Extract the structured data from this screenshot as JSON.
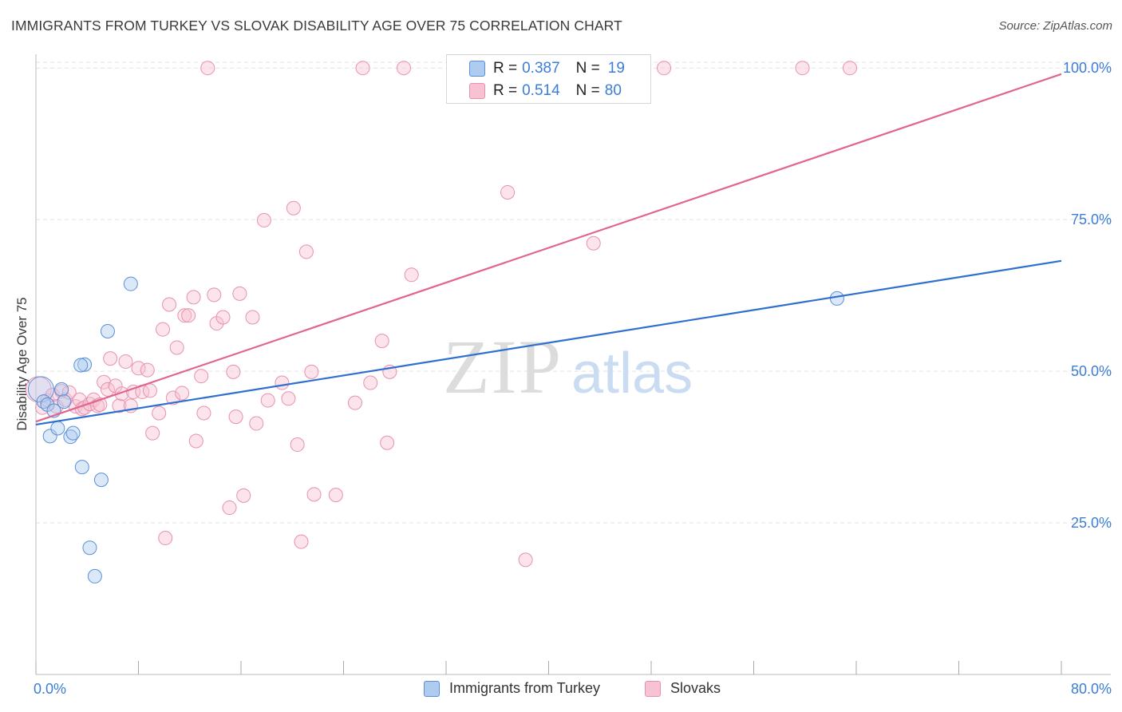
{
  "title": "IMMIGRANTS FROM TURKEY VS SLOVAK DISABILITY AGE OVER 75 CORRELATION CHART",
  "source": "Source: ZipAtlas.com",
  "watermark": {
    "zip": "ZIP",
    "atlas": "atlas"
  },
  "legend_top": [
    {
      "r_label": "R =",
      "r_value": "0.387",
      "n_label": "N =",
      "n_value": "19"
    },
    {
      "r_label": "R =",
      "r_value": "0.514",
      "n_label": "N =",
      "n_value": "80"
    }
  ],
  "x_axis": {
    "min_label": "0.0%",
    "max_label": "80.0%"
  },
  "colors": {
    "blue_fill": "#aecbf0",
    "blue_stroke": "#5b8fd6",
    "blue_line": "#2f6fd0",
    "pink_fill": "#f7c3d3",
    "pink_stroke": "#e891ad",
    "pink_line": "#e0658f",
    "tick_label": "#3b7dd8",
    "grid": "#e2e2e2"
  },
  "chart_data": {
    "type": "scatter",
    "title": "IMMIGRANTS FROM TURKEY VS SLOVAK DISABILITY AGE OVER 75 CORRELATION CHART",
    "xlabel": "",
    "ylabel": "Disability Age Over 75",
    "xlim": [
      0,
      80
    ],
    "ylim": [
      0,
      102
    ],
    "y_ticks": [
      {
        "value": 25,
        "label": "25.0%"
      },
      {
        "value": 50,
        "label": "50.0%"
      },
      {
        "value": 75,
        "label": "75.0%"
      },
      {
        "value": 100,
        "label": "100.0%"
      }
    ],
    "x_ticks": [
      0,
      8,
      16,
      24,
      32,
      40,
      48,
      56,
      64,
      72,
      80
    ],
    "grid": true,
    "legend_position": "bottom",
    "series": [
      {
        "name": "Immigrants from Turkey",
        "color": "#aecbf0",
        "points": [
          [
            0.4,
            47
          ],
          [
            0.6,
            45
          ],
          [
            0.9,
            44.5
          ],
          [
            1.1,
            39.3
          ],
          [
            1.4,
            43.5
          ],
          [
            1.7,
            40.6
          ],
          [
            2.0,
            47
          ],
          [
            2.2,
            45
          ],
          [
            2.7,
            39.2
          ],
          [
            2.9,
            39.8
          ],
          [
            3.6,
            34.2
          ],
          [
            3.8,
            51.1
          ],
          [
            4.2,
            20.9
          ],
          [
            4.6,
            16.2
          ],
          [
            5.1,
            32.1
          ],
          [
            5.6,
            56.6
          ],
          [
            7.4,
            64.4
          ],
          [
            3.5,
            51.0
          ],
          [
            62.5,
            62
          ]
        ],
        "trend": {
          "x0": 0,
          "y0": 41.2,
          "x1": 80,
          "y1": 68.2
        }
      },
      {
        "name": "Slovaks",
        "color": "#f7c3d3",
        "points": [
          [
            0.2,
            47
          ],
          [
            0.5,
            44
          ],
          [
            0.9,
            45.2
          ],
          [
            1.3,
            46.1
          ],
          [
            1.6,
            44.2
          ],
          [
            2.0,
            46.7
          ],
          [
            2.3,
            45.3
          ],
          [
            2.6,
            46.5
          ],
          [
            3.1,
            44.2
          ],
          [
            3.4,
            45.3
          ],
          [
            3.6,
            43.8
          ],
          [
            3.8,
            44.0
          ],
          [
            4.2,
            44.6
          ],
          [
            4.5,
            45.3
          ],
          [
            4.8,
            44.3
          ],
          [
            5.0,
            44.5
          ],
          [
            5.3,
            48.2
          ],
          [
            5.6,
            47
          ],
          [
            5.8,
            52.1
          ],
          [
            6.2,
            47.6
          ],
          [
            6.5,
            44.3
          ],
          [
            6.7,
            46.3
          ],
          [
            7.0,
            51.6
          ],
          [
            7.4,
            44.3
          ],
          [
            7.6,
            46.6
          ],
          [
            8.0,
            50.5
          ],
          [
            8.3,
            46.6
          ],
          [
            8.7,
            50.2
          ],
          [
            8.9,
            46.8
          ],
          [
            9.1,
            39.8
          ],
          [
            9.6,
            43.1
          ],
          [
            9.9,
            56.9
          ],
          [
            10.1,
            22.5
          ],
          [
            10.4,
            61.0
          ],
          [
            10.7,
            45.6
          ],
          [
            11.0,
            53.9
          ],
          [
            11.4,
            46.4
          ],
          [
            11.6,
            59.2
          ],
          [
            11.9,
            59.2
          ],
          [
            12.3,
            62.2
          ],
          [
            12.5,
            38.5
          ],
          [
            12.9,
            49.2
          ],
          [
            13.1,
            43.1
          ],
          [
            13.4,
            100
          ],
          [
            13.9,
            62.6
          ],
          [
            14.1,
            57.9
          ],
          [
            14.6,
            58.9
          ],
          [
            15.1,
            27.5
          ],
          [
            15.4,
            49.9
          ],
          [
            15.6,
            42.5
          ],
          [
            15.9,
            62.8
          ],
          [
            16.2,
            29.5
          ],
          [
            16.9,
            58.9
          ],
          [
            17.2,
            41.4
          ],
          [
            17.8,
            74.9
          ],
          [
            18.1,
            45.2
          ],
          [
            19.2,
            48.1
          ],
          [
            19.7,
            45.5
          ],
          [
            20.1,
            76.9
          ],
          [
            20.4,
            37.9
          ],
          [
            20.7,
            21.9
          ],
          [
            21.1,
            69.7
          ],
          [
            21.5,
            49.9
          ],
          [
            21.7,
            29.7
          ],
          [
            23.4,
            29.6
          ],
          [
            24.9,
            44.8
          ],
          [
            25.5,
            100
          ],
          [
            26.1,
            48.1
          ],
          [
            27.0,
            55.0
          ],
          [
            27.4,
            38.2
          ],
          [
            27.6,
            49.9
          ],
          [
            28.7,
            100
          ],
          [
            29.3,
            65.9
          ],
          [
            36.8,
            79.5
          ],
          [
            38.2,
            18.9
          ],
          [
            43.3,
            100
          ],
          [
            43.5,
            71.1
          ],
          [
            49.0,
            100
          ],
          [
            59.8,
            100
          ],
          [
            63.5,
            100
          ]
        ],
        "trend": {
          "x0": 0,
          "y0": 41.7,
          "x1": 80,
          "y1": 99
        }
      }
    ]
  }
}
